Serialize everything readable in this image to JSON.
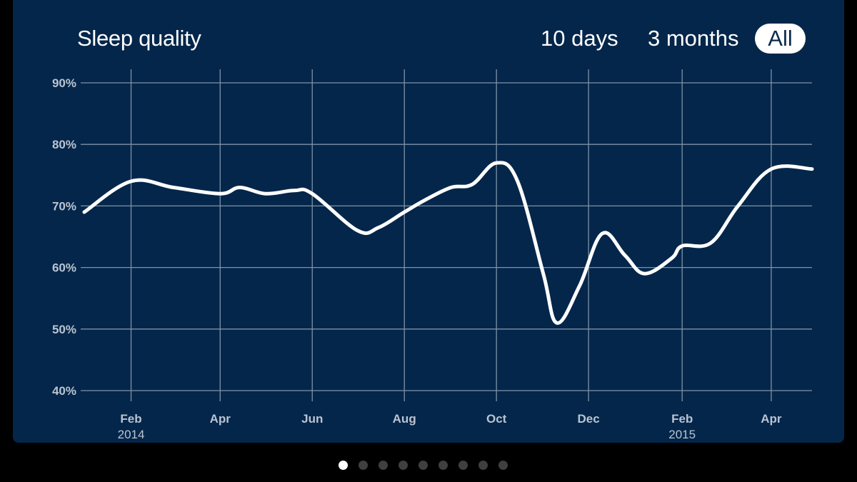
{
  "title": "Sleep quality",
  "ranges": [
    "10 days",
    "3 months",
    "All"
  ],
  "selected_range": "All",
  "page_indicator": {
    "count": 9,
    "active": 0
  },
  "colors": {
    "background": "#04264a",
    "line": "#ffffff",
    "grid": "#7f92a8",
    "page": "#000000"
  },
  "chart_data": {
    "type": "line",
    "title": "Sleep quality",
    "xlabel": "",
    "ylabel": "",
    "ylim": [
      40,
      90
    ],
    "xlim": [
      "2014-01-01",
      "2015-04-28"
    ],
    "y_ticks": [
      {
        "value": 90,
        "label": "90%"
      },
      {
        "value": 80,
        "label": "80%"
      },
      {
        "value": 70,
        "label": "70%"
      },
      {
        "value": 60,
        "label": "60%"
      },
      {
        "value": 50,
        "label": "50%"
      },
      {
        "value": 40,
        "label": "40%"
      }
    ],
    "x_ticks": [
      {
        "date": "2014-02-01",
        "label": "Feb",
        "sublabel": "2014"
      },
      {
        "date": "2014-04-01",
        "label": "Apr",
        "sublabel": ""
      },
      {
        "date": "2014-06-01",
        "label": "Jun",
        "sublabel": ""
      },
      {
        "date": "2014-08-01",
        "label": "Aug",
        "sublabel": ""
      },
      {
        "date": "2014-10-01",
        "label": "Oct",
        "sublabel": ""
      },
      {
        "date": "2014-12-01",
        "label": "Dec",
        "sublabel": ""
      },
      {
        "date": "2015-02-01",
        "label": "Feb",
        "sublabel": "2015"
      },
      {
        "date": "2015-04-01",
        "label": "Apr",
        "sublabel": ""
      }
    ],
    "grid": true,
    "series": [
      {
        "x": [
          "2014-01-01",
          "2014-02-01",
          "2014-03-01",
          "2014-04-01",
          "2014-04-14",
          "2014-05-01",
          "2014-05-20",
          "2014-06-01",
          "2014-07-01",
          "2014-07-15",
          "2014-08-01",
          "2014-08-15",
          "2014-09-01",
          "2014-09-15",
          "2014-10-01",
          "2014-10-15",
          "2014-11-01",
          "2014-11-10",
          "2014-11-25",
          "2014-12-10",
          "2014-12-25",
          "2015-01-07",
          "2015-01-25",
          "2015-02-01",
          "2015-02-20",
          "2015-03-10",
          "2015-04-01",
          "2015-04-28"
        ],
        "y": [
          69,
          74,
          73,
          72,
          73,
          72,
          72.5,
          72,
          66,
          66.5,
          69,
          71,
          73,
          73.5,
          77,
          74,
          59,
          51,
          57,
          65.5,
          62,
          59,
          61.5,
          63.5,
          64,
          70,
          76,
          76
        ]
      }
    ]
  }
}
